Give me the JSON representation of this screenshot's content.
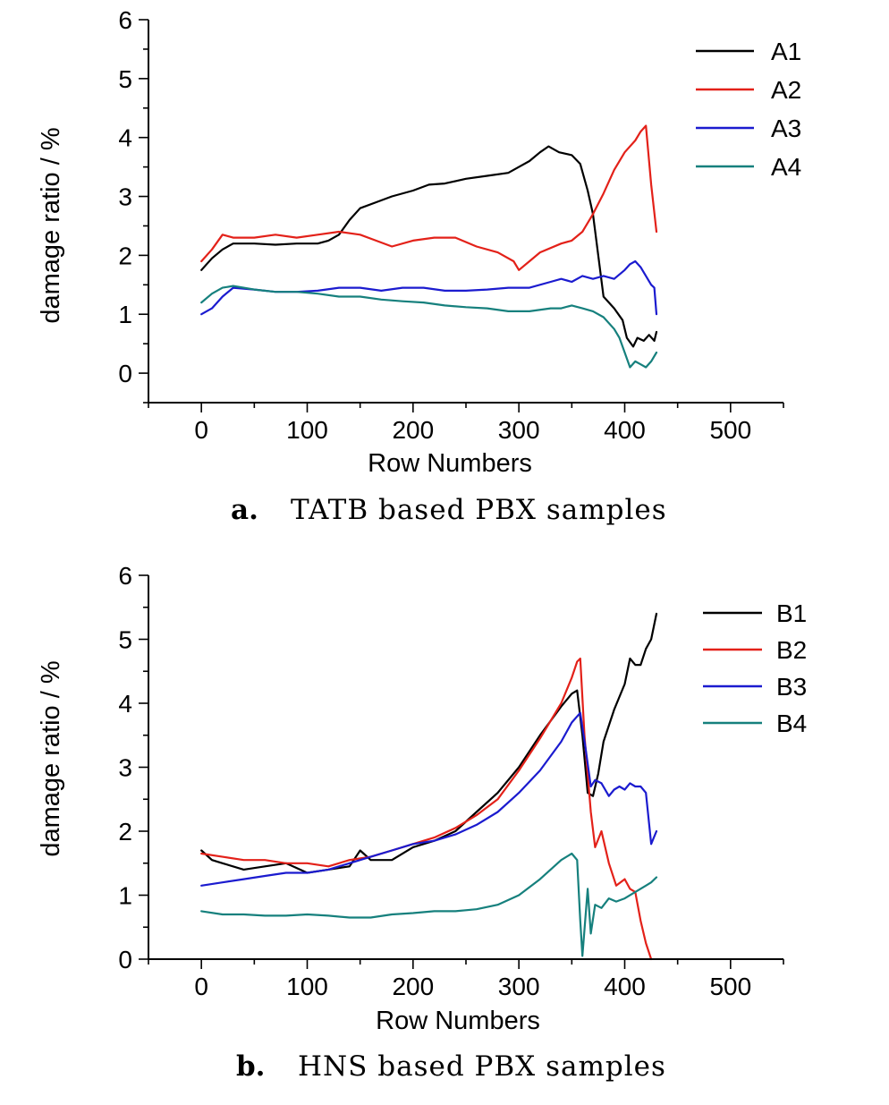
{
  "figure": {
    "chart_data": [
      {
        "type": "line",
        "caption_letter": "a.",
        "caption_text": "TATB based PBX samples",
        "xlabel": "Row Numbers",
        "ylabel": "damage ratio / %",
        "xlim": [
          -50,
          550
        ],
        "ylim": [
          -0.5,
          6
        ],
        "xticks": [
          0,
          100,
          200,
          300,
          400,
          500
        ],
        "yticks": [
          0,
          1,
          2,
          3,
          4,
          5,
          6
        ],
        "grid": false,
        "legend_position": "top-right",
        "series": [
          {
            "name": "A1",
            "color": "#000000",
            "x": [
              0,
              10,
              20,
              30,
              50,
              70,
              90,
              110,
              120,
              130,
              140,
              150,
              165,
              180,
              200,
              215,
              230,
              250,
              270,
              290,
              300,
              310,
              320,
              328,
              338,
              350,
              358,
              365,
              370,
              375,
              380,
              390,
              398,
              402,
              408,
              412,
              418,
              423,
              428,
              430
            ],
            "y": [
              1.75,
              1.95,
              2.1,
              2.2,
              2.2,
              2.18,
              2.2,
              2.2,
              2.25,
              2.35,
              2.6,
              2.8,
              2.9,
              3.0,
              3.1,
              3.2,
              3.22,
              3.3,
              3.35,
              3.4,
              3.5,
              3.6,
              3.75,
              3.85,
              3.75,
              3.7,
              3.55,
              3.1,
              2.7,
              2.0,
              1.3,
              1.1,
              0.9,
              0.6,
              0.45,
              0.6,
              0.55,
              0.65,
              0.55,
              0.7
            ]
          },
          {
            "name": "A2",
            "color": "#e32119",
            "x": [
              0,
              10,
              20,
              30,
              50,
              70,
              90,
              110,
              130,
              150,
              165,
              180,
              200,
              220,
              240,
              260,
              280,
              295,
              300,
              310,
              320,
              340,
              350,
              360,
              370,
              380,
              390,
              400,
              410,
              415,
              420,
              425,
              430
            ],
            "y": [
              1.9,
              2.1,
              2.35,
              2.3,
              2.3,
              2.35,
              2.3,
              2.35,
              2.4,
              2.35,
              2.25,
              2.15,
              2.25,
              2.3,
              2.3,
              2.15,
              2.05,
              1.9,
              1.75,
              1.9,
              2.05,
              2.2,
              2.25,
              2.4,
              2.7,
              3.05,
              3.45,
              3.75,
              3.95,
              4.1,
              4.2,
              3.2,
              2.4
            ]
          },
          {
            "name": "A3",
            "color": "#1b1bcf",
            "x": [
              0,
              10,
              20,
              30,
              50,
              70,
              90,
              110,
              130,
              150,
              170,
              190,
              210,
              230,
              250,
              270,
              290,
              310,
              330,
              340,
              350,
              360,
              370,
              380,
              390,
              400,
              405,
              410,
              415,
              420,
              425,
              428,
              430
            ],
            "y": [
              1.0,
              1.1,
              1.3,
              1.45,
              1.42,
              1.38,
              1.38,
              1.4,
              1.45,
              1.45,
              1.4,
              1.45,
              1.45,
              1.4,
              1.4,
              1.42,
              1.45,
              1.45,
              1.55,
              1.6,
              1.55,
              1.65,
              1.6,
              1.65,
              1.6,
              1.75,
              1.85,
              1.9,
              1.8,
              1.65,
              1.5,
              1.45,
              1.0
            ]
          },
          {
            "name": "A4",
            "color": "#16807d",
            "x": [
              0,
              10,
              20,
              30,
              50,
              70,
              90,
              110,
              130,
              150,
              170,
              190,
              210,
              230,
              250,
              270,
              290,
              310,
              330,
              340,
              350,
              360,
              370,
              380,
              390,
              395,
              400,
              405,
              410,
              415,
              420,
              425,
              430
            ],
            "y": [
              1.2,
              1.35,
              1.45,
              1.48,
              1.42,
              1.38,
              1.38,
              1.35,
              1.3,
              1.3,
              1.25,
              1.22,
              1.2,
              1.15,
              1.12,
              1.1,
              1.05,
              1.05,
              1.1,
              1.1,
              1.15,
              1.1,
              1.05,
              0.95,
              0.75,
              0.6,
              0.35,
              0.1,
              0.2,
              0.15,
              0.1,
              0.2,
              0.35
            ]
          }
        ]
      },
      {
        "type": "line",
        "caption_letter": "b.",
        "caption_text": "HNS based PBX samples",
        "xlabel": "Row Numbers",
        "ylabel": "damage ratio / %",
        "xlim": [
          -50,
          550
        ],
        "ylim": [
          0,
          6
        ],
        "xticks": [
          0,
          100,
          200,
          300,
          400,
          500
        ],
        "yticks": [
          0,
          1,
          2,
          3,
          4,
          5,
          6
        ],
        "grid": false,
        "legend_position": "top-right",
        "series": [
          {
            "name": "B1",
            "color": "#000000",
            "x": [
              0,
              10,
              20,
              40,
              60,
              80,
              100,
              120,
              140,
              150,
              160,
              170,
              180,
              200,
              220,
              240,
              260,
              280,
              300,
              320,
              340,
              350,
              355,
              360,
              365,
              370,
              375,
              380,
              390,
              400,
              405,
              410,
              415,
              420,
              425,
              430
            ],
            "y": [
              1.7,
              1.55,
              1.5,
              1.4,
              1.45,
              1.5,
              1.35,
              1.4,
              1.45,
              1.7,
              1.55,
              1.55,
              1.55,
              1.75,
              1.85,
              2.0,
              2.3,
              2.6,
              3.0,
              3.5,
              3.95,
              4.15,
              4.2,
              3.5,
              2.6,
              2.55,
              2.9,
              3.4,
              3.9,
              4.3,
              4.7,
              4.6,
              4.6,
              4.85,
              5.0,
              5.4
            ]
          },
          {
            "name": "B2",
            "color": "#e32119",
            "x": [
              0,
              20,
              40,
              60,
              80,
              100,
              120,
              140,
              160,
              180,
              200,
              220,
              240,
              260,
              280,
              300,
              320,
              340,
              350,
              355,
              358,
              362,
              368,
              372,
              378,
              385,
              392,
              400,
              405,
              410,
              415,
              420,
              425
            ],
            "y": [
              1.65,
              1.6,
              1.55,
              1.55,
              1.5,
              1.5,
              1.45,
              1.55,
              1.6,
              1.7,
              1.8,
              1.9,
              2.05,
              2.25,
              2.5,
              2.95,
              3.45,
              4.0,
              4.4,
              4.65,
              4.7,
              3.5,
              2.3,
              1.75,
              2.0,
              1.5,
              1.15,
              1.25,
              1.1,
              1.05,
              0.6,
              0.25,
              0.0
            ]
          },
          {
            "name": "B3",
            "color": "#1b1bcf",
            "x": [
              0,
              20,
              40,
              60,
              80,
              100,
              120,
              140,
              160,
              180,
              200,
              220,
              240,
              260,
              280,
              300,
              320,
              340,
              350,
              358,
              363,
              368,
              372,
              378,
              385,
              390,
              395,
              400,
              405,
              410,
              415,
              420,
              425,
              430
            ],
            "y": [
              1.15,
              1.2,
              1.25,
              1.3,
              1.35,
              1.35,
              1.4,
              1.5,
              1.6,
              1.7,
              1.8,
              1.85,
              1.95,
              2.1,
              2.3,
              2.6,
              2.95,
              3.4,
              3.7,
              3.85,
              3.3,
              2.7,
              2.8,
              2.75,
              2.55,
              2.65,
              2.7,
              2.65,
              2.75,
              2.7,
              2.7,
              2.6,
              1.8,
              2.0
            ]
          },
          {
            "name": "B4",
            "color": "#16807d",
            "x": [
              0,
              20,
              40,
              60,
              80,
              100,
              120,
              140,
              160,
              180,
              200,
              220,
              240,
              260,
              280,
              300,
              320,
              340,
              350,
              355,
              358,
              360,
              365,
              368,
              372,
              378,
              385,
              392,
              400,
              410,
              420,
              425,
              430
            ],
            "y": [
              0.75,
              0.7,
              0.7,
              0.68,
              0.68,
              0.7,
              0.68,
              0.65,
              0.65,
              0.7,
              0.72,
              0.75,
              0.75,
              0.78,
              0.85,
              1.0,
              1.25,
              1.55,
              1.65,
              1.55,
              0.6,
              0.05,
              1.1,
              0.4,
              0.85,
              0.8,
              0.95,
              0.9,
              0.95,
              1.05,
              1.15,
              1.2,
              1.28
            ]
          }
        ]
      }
    ]
  }
}
